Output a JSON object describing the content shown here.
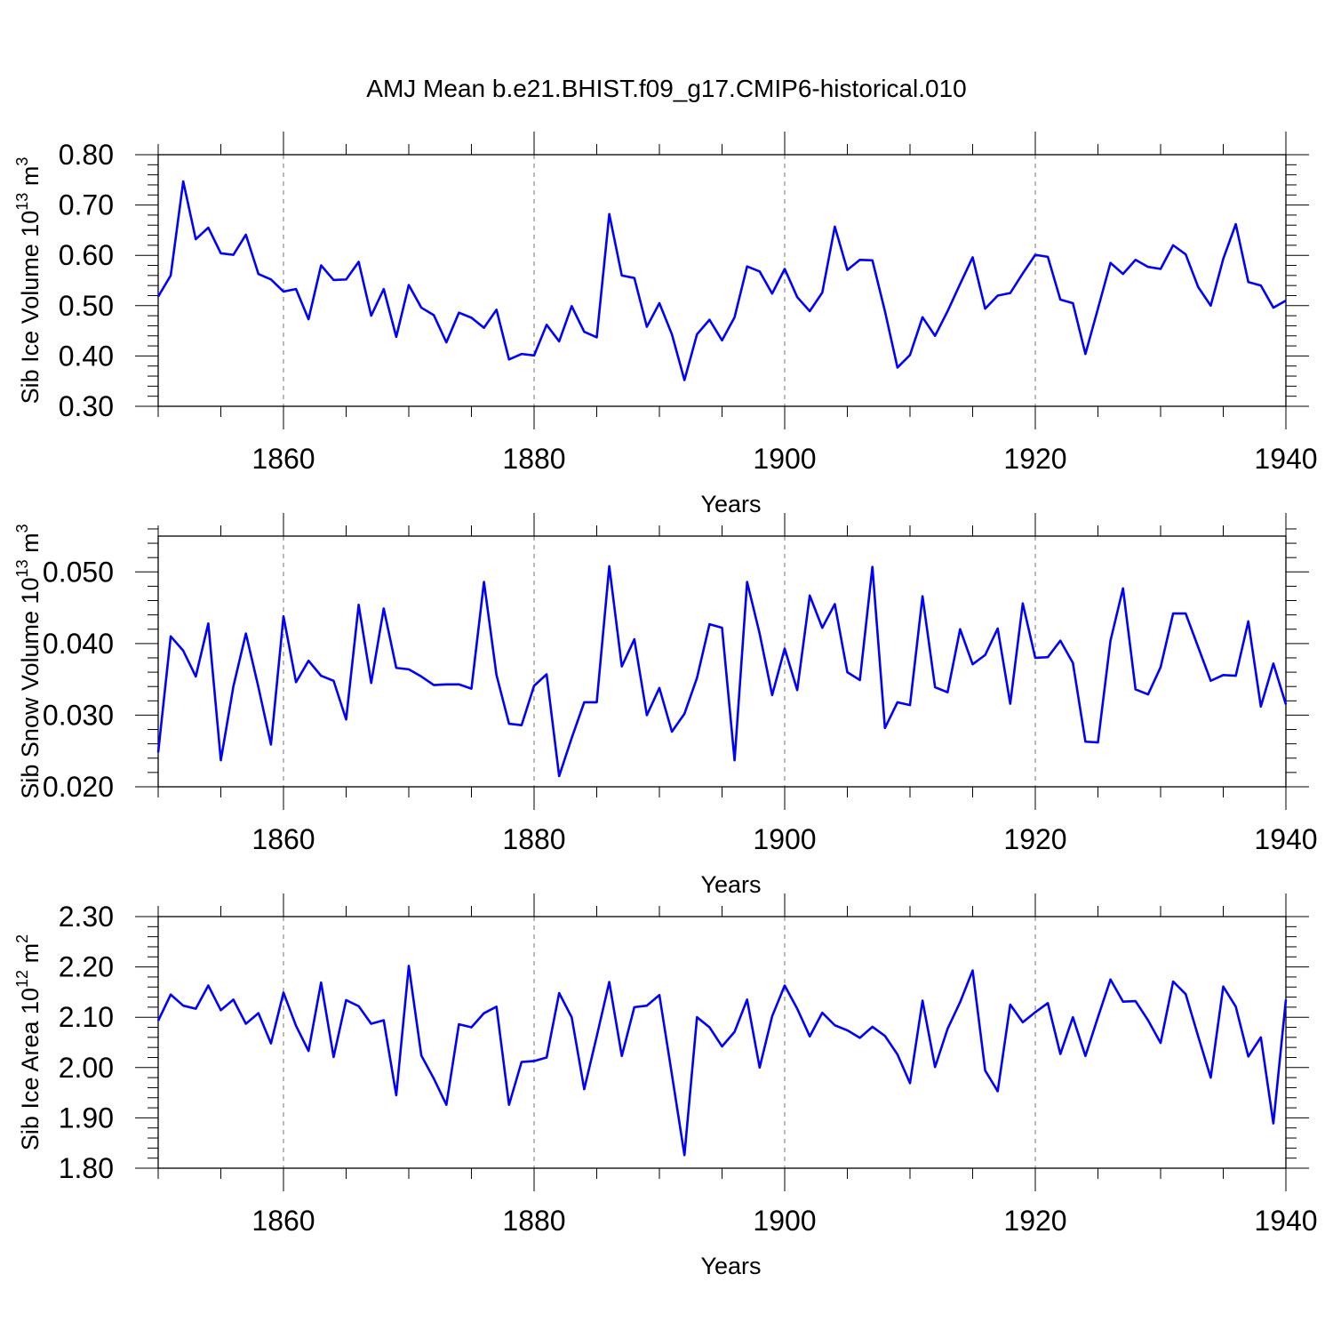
{
  "title": "AMJ Mean b.e21.BHIST.f09_g17.CMIP6-historical.010",
  "line_color": "#0000ff",
  "chart_data": [
    {
      "type": "line",
      "title": "",
      "xlabel": "Years",
      "ylabel": {
        "prefix": "Sib Ice Volume 10",
        "exponent": "13",
        "unit": " m",
        "unit_exponent": "3"
      },
      "xlim": [
        1850,
        1940
      ],
      "ylim": [
        0.3,
        0.8
      ],
      "grid": "vertical dashed at labeled x ticks",
      "x_ticks": [
        1860,
        1880,
        1900,
        1920,
        1940
      ],
      "x_tick_labels": [
        "1860",
        "1880",
        "1900",
        "1920",
        "1940"
      ],
      "y_ticks": [
        0.3,
        0.4,
        0.5,
        0.6,
        0.7,
        0.8
      ],
      "y_tick_labels": [
        "0.30",
        "0.40",
        "0.50",
        "0.60",
        "0.70",
        "0.80"
      ],
      "x_start": 1850,
      "values": [
        0.518,
        0.56,
        0.747,
        0.632,
        0.655,
        0.604,
        0.601,
        0.641,
        0.563,
        0.552,
        0.528,
        0.533,
        0.473,
        0.58,
        0.551,
        0.552,
        0.587,
        0.48,
        0.533,
        0.438,
        0.541,
        0.496,
        0.481,
        0.427,
        0.486,
        0.476,
        0.456,
        0.492,
        0.393,
        0.404,
        0.401,
        0.462,
        0.429,
        0.499,
        0.448,
        0.437,
        0.682,
        0.56,
        0.555,
        0.458,
        0.505,
        0.443,
        0.352,
        0.443,
        0.472,
        0.431,
        0.477,
        0.578,
        0.568,
        0.524,
        0.573,
        0.517,
        0.489,
        0.526,
        0.657,
        0.571,
        0.591,
        0.59,
        0.489,
        0.377,
        0.402,
        0.477,
        0.44,
        0.489,
        0.543,
        0.596,
        0.494,
        0.52,
        0.525,
        0.564,
        0.601,
        0.597,
        0.512,
        0.505,
        0.404,
        0.494,
        0.585,
        0.563,
        0.591,
        0.577,
        0.573,
        0.62,
        0.602,
        0.537,
        0.5,
        0.593,
        0.662,
        0.547,
        0.54,
        0.496,
        0.51
      ]
    },
    {
      "type": "line",
      "title": "",
      "xlabel": "Years",
      "ylabel": {
        "prefix": "Sib Snow Volume 10",
        "exponent": "13",
        "unit": " m",
        "unit_exponent": "3"
      },
      "xlim": [
        1850,
        1940
      ],
      "ylim": [
        0.02,
        0.055
      ],
      "grid": "vertical dashed at labeled x ticks",
      "x_ticks": [
        1860,
        1880,
        1900,
        1920,
        1940
      ],
      "x_tick_labels": [
        "1860",
        "1880",
        "1900",
        "1920",
        "1940"
      ],
      "y_ticks": [
        0.02,
        0.03,
        0.04,
        0.05
      ],
      "y_tick_labels": [
        "0.020",
        "0.030",
        "0.040",
        "0.050"
      ],
      "x_start": 1850,
      "values": [
        0.0248,
        0.041,
        0.039,
        0.0354,
        0.0428,
        0.0237,
        0.034,
        0.0414,
        0.0339,
        0.0259,
        0.0438,
        0.0346,
        0.0376,
        0.0355,
        0.0348,
        0.0294,
        0.0454,
        0.0345,
        0.0449,
        0.0366,
        0.0364,
        0.0354,
        0.0342,
        0.0343,
        0.0343,
        0.0337,
        0.0486,
        0.0356,
        0.0288,
        0.0286,
        0.0341,
        0.0357,
        0.0215,
        0.0268,
        0.0318,
        0.0318,
        0.0508,
        0.0368,
        0.0406,
        0.03,
        0.0338,
        0.0277,
        0.0302,
        0.0352,
        0.0427,
        0.0422,
        0.0237,
        0.0486,
        0.0414,
        0.0328,
        0.0393,
        0.0335,
        0.0467,
        0.0422,
        0.0455,
        0.036,
        0.0349,
        0.0507,
        0.0282,
        0.0318,
        0.0314,
        0.0466,
        0.0339,
        0.0332,
        0.042,
        0.0371,
        0.0384,
        0.0421,
        0.0316,
        0.0456,
        0.038,
        0.0381,
        0.0404,
        0.0373,
        0.0263,
        0.0262,
        0.0404,
        0.0477,
        0.0336,
        0.0329,
        0.0367,
        0.0442,
        0.0442,
        0.0395,
        0.0348,
        0.0356,
        0.0355,
        0.0431,
        0.0312,
        0.0372,
        0.0315
      ]
    },
    {
      "type": "line",
      "title": "",
      "xlabel": "Years",
      "ylabel": {
        "prefix": "Sib Ice Area 10",
        "exponent": "12",
        "unit": " m",
        "unit_exponent": "2"
      },
      "xlim": [
        1850,
        1940
      ],
      "ylim": [
        1.8,
        2.3
      ],
      "grid": "vertical dashed at labeled x ticks",
      "x_ticks": [
        1860,
        1880,
        1900,
        1920,
        1940
      ],
      "x_tick_labels": [
        "1860",
        "1880",
        "1900",
        "1920",
        "1940"
      ],
      "y_ticks": [
        1.8,
        1.9,
        2.0,
        2.1,
        2.2,
        2.3
      ],
      "y_tick_labels": [
        "1.80",
        "1.90",
        "2.00",
        "2.10",
        "2.20",
        "2.30"
      ],
      "x_start": 1850,
      "values": [
        2.093,
        2.145,
        2.123,
        2.117,
        2.163,
        2.114,
        2.135,
        2.087,
        2.108,
        2.048,
        2.149,
        2.083,
        2.033,
        2.169,
        2.021,
        2.134,
        2.122,
        2.087,
        2.094,
        1.945,
        2.202,
        2.024,
        1.978,
        1.926,
        2.086,
        2.08,
        2.108,
        2.121,
        1.926,
        2.011,
        2.013,
        2.02,
        2.148,
        2.1,
        1.957,
        2.062,
        2.17,
        2.023,
        2.12,
        2.123,
        2.144,
        1.986,
        1.826,
        2.1,
        2.08,
        2.042,
        2.071,
        2.135,
        2.0,
        2.102,
        2.163,
        2.117,
        2.062,
        2.109,
        2.084,
        2.074,
        2.059,
        2.081,
        2.063,
        2.026,
        1.969,
        2.133,
        2.001,
        2.077,
        2.13,
        2.193,
        1.994,
        1.953,
        2.125,
        2.09,
        2.11,
        2.128,
        2.027,
        2.1,
        2.023,
        2.1,
        2.175,
        2.131,
        2.132,
        2.094,
        2.049,
        2.171,
        2.146,
        2.062,
        1.98,
        2.161,
        2.121,
        2.022,
        2.06,
        1.889,
        2.135
      ]
    }
  ]
}
